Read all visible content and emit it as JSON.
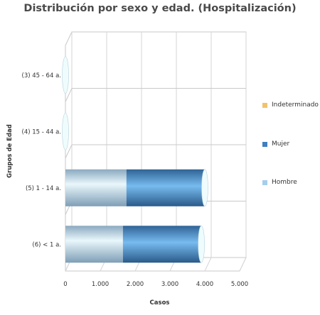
{
  "chart_data": {
    "type": "bar",
    "orientation": "horizontal",
    "stacked": true,
    "style": "3d-cylinder",
    "title": "Distribución por sexo y edad. (Hospitalización)",
    "xlabel": "Casos",
    "ylabel": "Grupos de Edad",
    "categories": [
      "(3) 45 - 64 a.",
      "(4) 15 - 44 a.",
      "(5) 1 - 14 a.",
      "(6) < 1 a."
    ],
    "series": [
      {
        "name": "Hombre",
        "values": [
          1,
          1,
          1750,
          1650
        ],
        "color": "#a6cdec"
      },
      {
        "name": "Mujer",
        "values": [
          0,
          0,
          2250,
          2250
        ],
        "color": "#3e7fc1"
      },
      {
        "name": "Indeterminado",
        "values": [
          0,
          0,
          0,
          0
        ],
        "color": "#f2c26b"
      }
    ],
    "xlim": [
      0,
      5000
    ],
    "xticks": [
      0,
      1000,
      2000,
      3000,
      4000,
      5000
    ],
    "xtick_labels": [
      "0",
      "1.000",
      "2.000",
      "3.000",
      "4.000",
      "5.000"
    ],
    "grid": true,
    "legend_position": "right"
  }
}
